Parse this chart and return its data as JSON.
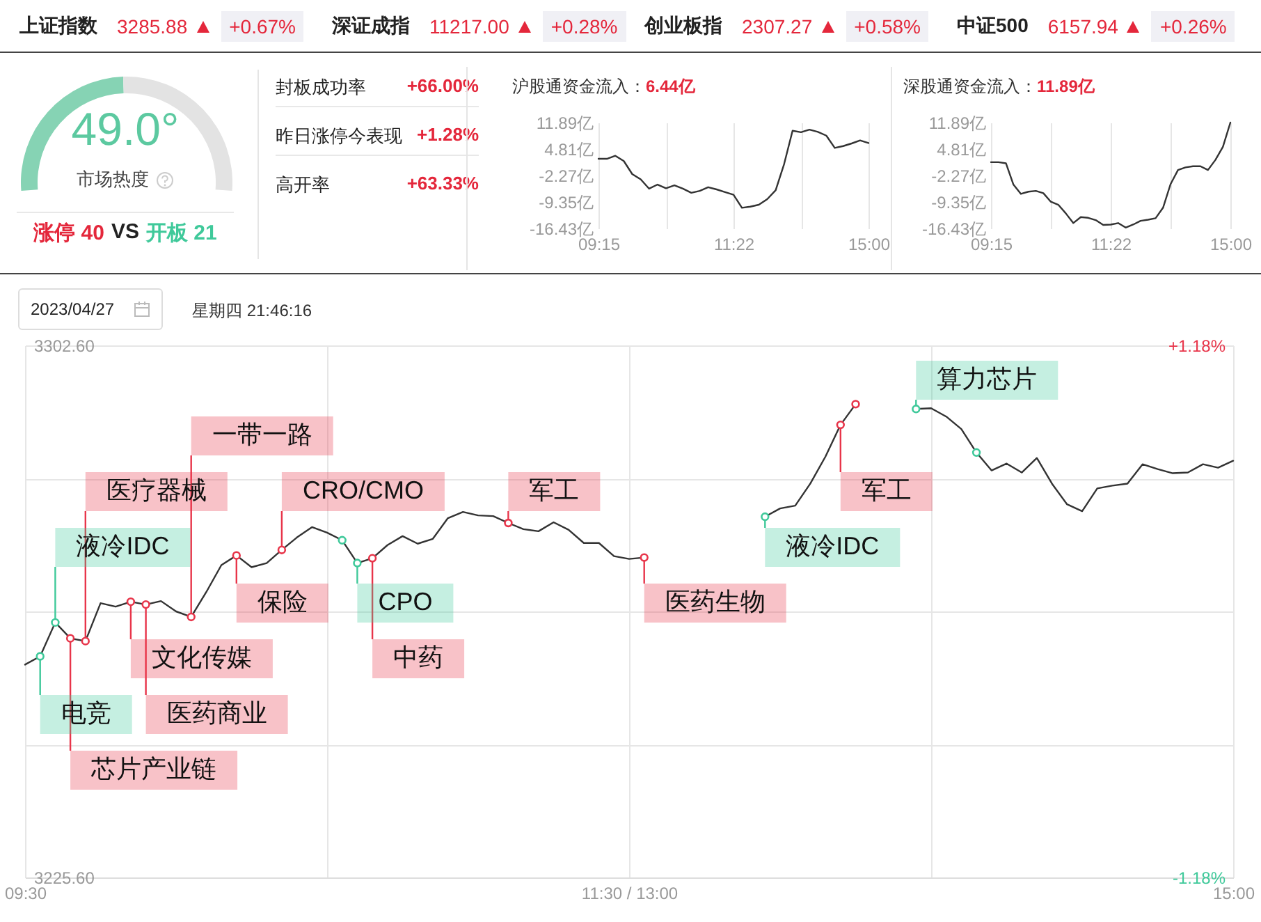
{
  "chart_data": [
    {
      "type": "other",
      "annotations": [
        "上证指数",
        "3285.88",
        "+0.67%",
        "深证成指",
        "11217.00",
        "+0.28%",
        "创业板指",
        "2307.27",
        "+0.58%",
        "中证500",
        "6157.94",
        "+0.26%"
      ]
    },
    {
      "type": "donut",
      "categories": [
        null,
        null
      ],
      "values": [
        49.0,
        51.0
      ],
      "colors": [
        "#86d3b4",
        "#e3e3e3"
      ],
      "annotations": [
        "49.0°",
        "市场热度",
        "涨停 40",
        "VS",
        "开板 21"
      ]
    },
    {
      "type": "other",
      "annotations": [
        "封板成功率",
        "+66.00%",
        "昨日涨停今表现",
        "+1.28%",
        "高开率",
        "+63.33%"
      ]
    },
    {
      "type": "line",
      "title": "沪股通资金流入：",
      "subtitle": "6.44亿",
      "categories": [
        "09:15",
        null,
        null,
        null,
        null,
        null,
        null,
        null,
        null,
        null,
        null,
        null,
        null,
        null,
        null,
        null,
        "11:22",
        null,
        null,
        null,
        null,
        null,
        null,
        null,
        null,
        null,
        null,
        null,
        null,
        null,
        null,
        null,
        "15:00"
      ],
      "ylim": [
        -16.43,
        11.89
      ],
      "yticks": [
        {
          "value": 11.89,
          "label": "11.89亿"
        },
        {
          "value": 4.81,
          "label": "4.81亿"
        },
        {
          "value": -2.27,
          "label": "-2.27亿"
        },
        {
          "value": -9.35,
          "label": "-9.35亿"
        },
        {
          "value": -16.43,
          "label": "-16.43亿"
        }
      ],
      "grid": "x",
      "series": [
        {
          "color": "#333333",
          "values": [
            2.2,
            2.2,
            3.0,
            1.6,
            -1.9,
            -3.3,
            -5.8,
            -4.7,
            -5.7,
            -4.9,
            -5.8,
            -6.9,
            -6.4,
            -5.4,
            -6.0,
            -6.7,
            -7.4,
            -10.9,
            -10.6,
            -10.1,
            -8.6,
            -6.2,
            0.8,
            9.7,
            9.3,
            10.0,
            9.4,
            8.4,
            5.1,
            5.6,
            6.3,
            7.1,
            6.4
          ]
        }
      ]
    },
    {
      "type": "line",
      "title": "深股通资金流入：",
      "subtitle": "11.89亿",
      "categories": [
        "09:15",
        null,
        null,
        null,
        null,
        null,
        null,
        null,
        null,
        null,
        null,
        null,
        null,
        null,
        null,
        null,
        "11:22",
        null,
        null,
        null,
        null,
        null,
        null,
        null,
        null,
        null,
        null,
        null,
        null,
        null,
        null,
        null,
        "15:00"
      ],
      "ylim": [
        -16.43,
        11.89
      ],
      "yticks": [
        {
          "value": 11.89,
          "label": "11.89亿"
        },
        {
          "value": 4.81,
          "label": "4.81亿"
        },
        {
          "value": -2.27,
          "label": "-2.27亿"
        },
        {
          "value": -9.35,
          "label": "-9.35亿"
        },
        {
          "value": -16.43,
          "label": "-16.43亿"
        }
      ],
      "grid": "x",
      "series": [
        {
          "color": "#333333",
          "values": [
            1.3,
            1.3,
            1.0,
            -4.7,
            -7.2,
            -6.6,
            -6.4,
            -7.0,
            -9.3,
            -10.1,
            -12.4,
            -15.0,
            -13.4,
            -13.6,
            -14.2,
            -15.5,
            -15.4,
            -15.0,
            -16.2,
            -15.4,
            -14.4,
            -14.1,
            -13.7,
            -10.9,
            -4.6,
            -0.8,
            -0.1,
            0.2,
            0.2,
            -0.8,
            1.9,
            5.4,
            11.89
          ]
        }
      ]
    },
    {
      "type": "line",
      "annotations": [
        "2023/04/27",
        "星期四 21:46:16"
      ],
      "categories": [
        "09:30",
        null,
        null,
        null,
        null,
        null,
        null,
        null,
        null,
        null,
        null,
        null,
        null,
        null,
        null,
        null,
        null,
        null,
        null,
        null,
        null,
        null,
        null,
        null,
        null,
        null,
        null,
        null,
        null,
        null,
        null,
        null,
        null,
        null,
        null,
        null,
        null,
        null,
        null,
        null,
        "11:30 / 13:00",
        null,
        null,
        null,
        null,
        null,
        null,
        null,
        null,
        null,
        null,
        null,
        null,
        null,
        null,
        null,
        null,
        null,
        null,
        null,
        null,
        null,
        null,
        null,
        null,
        null,
        null,
        null,
        null,
        null,
        null,
        null,
        null,
        null,
        null,
        null,
        null,
        null,
        null,
        null,
        "15:00"
      ],
      "ylim": [
        3225.6,
        3302.6
      ],
      "yticks": [
        {
          "value": 3225.6,
          "label": "3225.60"
        },
        {
          "value": 3244.85,
          "label": null
        },
        {
          "value": 3264.1,
          "label": null
        },
        {
          "value": 3283.35,
          "label": null
        },
        {
          "value": 3302.6,
          "label": "3302.60"
        }
      ],
      "y2lim": [
        -1.18,
        1.18
      ],
      "y2ticks": [
        {
          "value": -1.18,
          "label": "-1.18%"
        },
        {
          "value": 1.18,
          "label": "+1.18%"
        }
      ],
      "grid": true,
      "series": [
        {
          "color": "#333333",
          "values": [
            3256.4,
            3257.6,
            3262.5,
            3260.2,
            3259.8,
            3265.3,
            3264.8,
            3265.5,
            3265.1,
            3265.6,
            3264.1,
            3263.3,
            3266.9,
            3270.8,
            3272.2,
            3270.5,
            3271.1,
            3273.0,
            3274.8,
            3276.3,
            3275.5,
            3274.4,
            3271.1,
            3271.8,
            3273.7,
            3275.0,
            3273.9,
            3274.6,
            3277.6,
            3278.5,
            3278.0,
            3277.9,
            3276.9,
            3276.0,
            3275.7,
            3277.0,
            3275.9,
            3274.0,
            3274.0,
            3272.1,
            3271.7,
            3271.9,
            null,
            null,
            null,
            null,
            null,
            null,
            null,
            3277.8,
            3279.0,
            3279.4,
            3282.6,
            3286.5,
            3291.1,
            3294.1,
            null,
            null,
            null,
            3293.4,
            3293.5,
            3292.3,
            3290.5,
            3287.1,
            3284.5,
            3285.5,
            3284.2,
            3286.3,
            3282.6,
            3279.6,
            3278.6,
            3281.9,
            3282.3,
            3282.6,
            3285.4,
            3284.7,
            3284.1,
            3284.2,
            3285.4,
            3284.9,
            3285.9
          ]
        },
        {
          "type": "scatter",
          "color": "#e8354a",
          "values": [
            null,
            null,
            null,
            3260.2,
            3259.8,
            null,
            null,
            3265.5,
            3265.1,
            null,
            null,
            3263.3,
            null,
            null,
            3272.2,
            null,
            null,
            3273.0,
            null,
            null,
            null,
            null,
            null,
            3271.8,
            null,
            null,
            null,
            null,
            null,
            null,
            null,
            null,
            3276.9,
            null,
            null,
            null,
            null,
            null,
            null,
            null,
            null,
            3271.9,
            null,
            null,
            null,
            null,
            null,
            null,
            null,
            null,
            null,
            null,
            null,
            null,
            3291.1,
            3294.1,
            null,
            null,
            null,
            null,
            null,
            null,
            null,
            null,
            null,
            null,
            null,
            null,
            null,
            null,
            null,
            null,
            null,
            null,
            null,
            null,
            null,
            null,
            null,
            null,
            null
          ],
          "value_labels": [
            null,
            null,
            null,
            "芯片产业链",
            "医疗器械",
            null,
            null,
            "文化传媒",
            "医药商业",
            null,
            null,
            "一带一路",
            null,
            null,
            "保险",
            null,
            null,
            "CRO/CMO",
            null,
            null,
            null,
            null,
            null,
            "中药",
            null,
            null,
            null,
            null,
            null,
            null,
            null,
            null,
            "军工",
            null,
            null,
            null,
            null,
            null,
            null,
            null,
            null,
            "医药生物",
            null,
            null,
            null,
            null,
            null,
            null,
            null,
            null,
            null,
            null,
            null,
            null,
            "军工",
            null,
            null,
            null,
            null,
            null,
            null,
            null,
            null,
            null,
            null,
            null,
            null,
            null,
            null,
            null,
            null,
            null,
            null,
            null,
            null,
            null,
            null,
            null,
            null,
            null,
            null
          ]
        },
        {
          "type": "scatter",
          "color": "#3fc99a",
          "values": [
            null,
            3257.6,
            3262.5,
            null,
            null,
            null,
            null,
            null,
            null,
            null,
            null,
            null,
            null,
            null,
            null,
            null,
            null,
            null,
            null,
            null,
            null,
            3274.4,
            3271.1,
            null,
            null,
            null,
            null,
            null,
            null,
            null,
            null,
            null,
            null,
            null,
            null,
            null,
            null,
            null,
            null,
            null,
            null,
            null,
            null,
            null,
            null,
            null,
            null,
            null,
            null,
            3277.8,
            null,
            null,
            null,
            null,
            null,
            null,
            null,
            null,
            null,
            3293.4,
            null,
            null,
            null,
            3287.1,
            null,
            null,
            null,
            null,
            null,
            null,
            null,
            null,
            null,
            null,
            null,
            null,
            null,
            null,
            null,
            null,
            null
          ],
          "value_labels": [
            null,
            "电竞",
            "液冷IDC",
            null,
            null,
            null,
            null,
            null,
            null,
            null,
            null,
            null,
            null,
            null,
            null,
            null,
            null,
            null,
            null,
            null,
            null,
            null,
            "CPO",
            null,
            null,
            null,
            null,
            null,
            null,
            null,
            null,
            null,
            null,
            null,
            null,
            null,
            null,
            null,
            null,
            null,
            null,
            null,
            null,
            null,
            null,
            null,
            null,
            null,
            null,
            "液冷IDC",
            null,
            null,
            null,
            null,
            null,
            null,
            null,
            null,
            null,
            "算力芯片",
            null,
            null,
            null,
            null,
            null,
            null,
            null,
            null,
            null,
            null,
            null,
            null,
            null,
            null,
            null,
            null,
            null,
            null,
            null,
            null,
            null
          ]
        }
      ]
    }
  ]
}
